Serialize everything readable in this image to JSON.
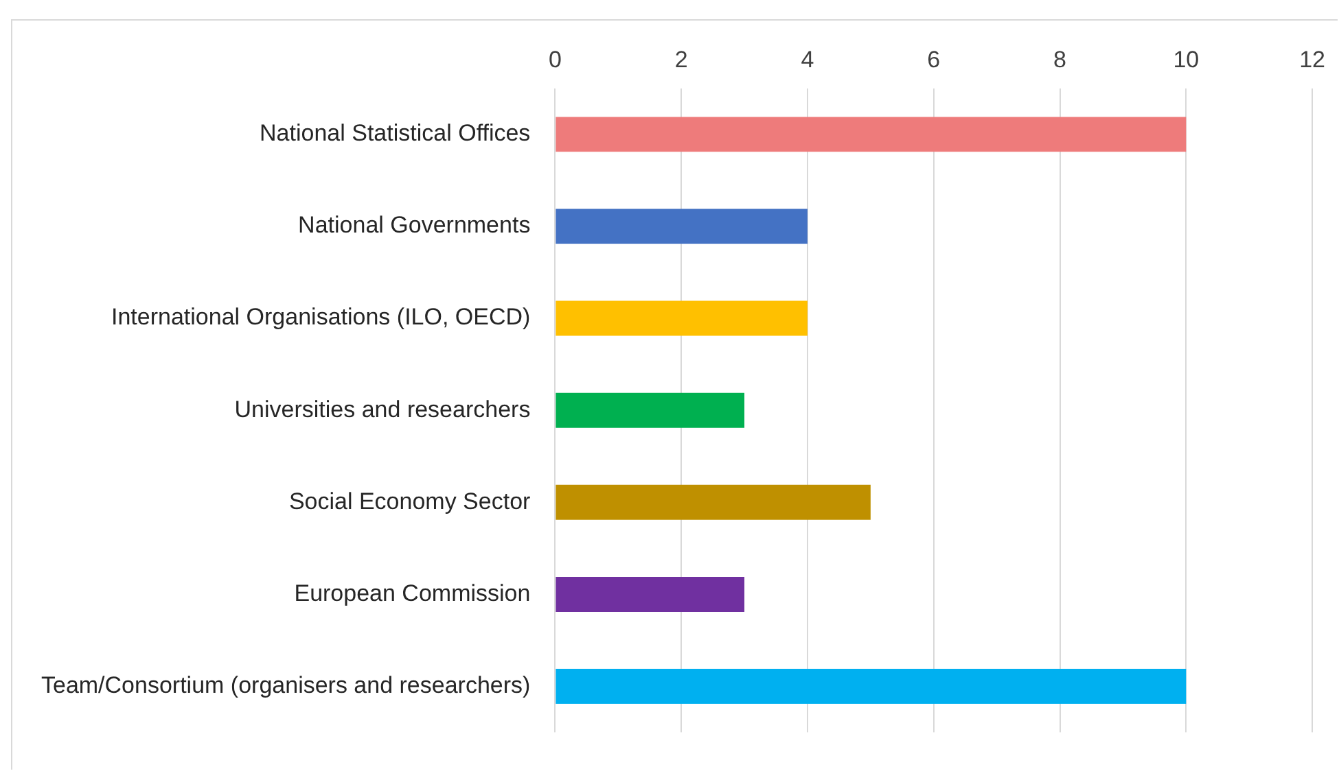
{
  "chart_data": {
    "type": "bar",
    "orientation": "horizontal",
    "categories": [
      "National Statistical Offices",
      "National Governments",
      "International Organisations (ILO, OECD)",
      "Universities and researchers",
      "Social Economy Sector",
      "European Commission",
      "Team/Consortium (organisers and researchers)"
    ],
    "values": [
      10,
      4,
      4,
      3,
      5,
      3,
      10
    ],
    "colors": [
      "#ee7b7b",
      "#4472c4",
      "#ffc000",
      "#00b050",
      "#bf9000",
      "#7030a0",
      "#00b0f0"
    ],
    "xlim": [
      0,
      12
    ],
    "xticks": [
      0,
      2,
      4,
      6,
      8,
      10,
      12
    ],
    "grid": "x"
  }
}
